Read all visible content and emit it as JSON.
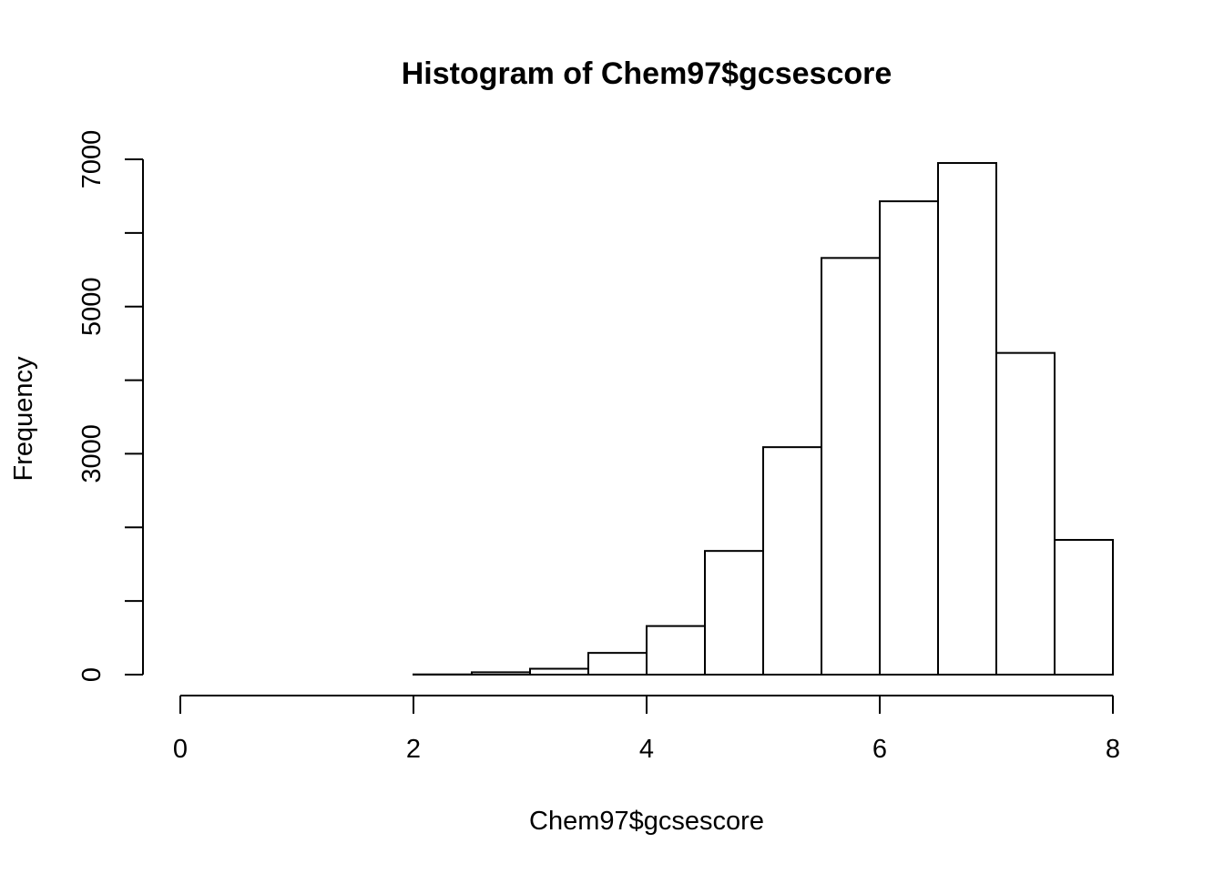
{
  "chart_data": {
    "type": "bar",
    "title": "Histogram of Chem97$gcsescore",
    "xlabel": "Chem97$gcsescore",
    "ylabel": "Frequency",
    "bins": [
      {
        "start": 0.0,
        "end": 0.5,
        "count": 0
      },
      {
        "start": 0.5,
        "end": 1.0,
        "count": 0
      },
      {
        "start": 1.0,
        "end": 1.5,
        "count": 0
      },
      {
        "start": 1.5,
        "end": 2.0,
        "count": 0
      },
      {
        "start": 2.0,
        "end": 2.5,
        "count": 3
      },
      {
        "start": 2.5,
        "end": 3.0,
        "count": 32
      },
      {
        "start": 3.0,
        "end": 3.5,
        "count": 80
      },
      {
        "start": 3.5,
        "end": 4.0,
        "count": 295
      },
      {
        "start": 4.0,
        "end": 4.5,
        "count": 660
      },
      {
        "start": 4.5,
        "end": 5.0,
        "count": 1680
      },
      {
        "start": 5.0,
        "end": 5.5,
        "count": 3090
      },
      {
        "start": 5.5,
        "end": 6.0,
        "count": 5660
      },
      {
        "start": 6.0,
        "end": 6.5,
        "count": 6430
      },
      {
        "start": 6.5,
        "end": 7.0,
        "count": 6950
      },
      {
        "start": 7.0,
        "end": 7.5,
        "count": 4370
      },
      {
        "start": 7.5,
        "end": 8.0,
        "count": 1830
      }
    ],
    "xlim": [
      0,
      8
    ],
    "ylim": [
      0,
      7000
    ],
    "xticks": [
      0,
      2,
      4,
      6,
      8
    ],
    "yticks": [
      0,
      1000,
      2000,
      3000,
      4000,
      5000,
      6000,
      7000
    ],
    "ytick_labels": [
      "0",
      "",
      "",
      "3000",
      "",
      "5000",
      "",
      "7000"
    ],
    "grid": false,
    "bar_fill": "#ffffff",
    "bar_stroke": "#000000"
  }
}
